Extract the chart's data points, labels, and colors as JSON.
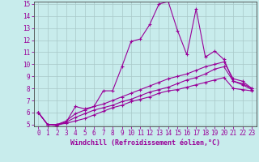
{
  "xlabel": "Windchill (Refroidissement éolien,°C)",
  "bg_color": "#c8ecec",
  "line_color": "#990099",
  "grid_color": "#b0c8c8",
  "ylim": [
    5,
    15
  ],
  "xlim": [
    -0.5,
    23.5
  ],
  "yticks": [
    5,
    6,
    7,
    8,
    9,
    10,
    11,
    12,
    13,
    14,
    15
  ],
  "xticks": [
    0,
    1,
    2,
    3,
    4,
    5,
    6,
    7,
    8,
    9,
    10,
    11,
    12,
    13,
    14,
    15,
    16,
    17,
    18,
    19,
    20,
    21,
    22,
    23
  ],
  "line1_x": [
    0,
    1,
    2,
    3,
    4,
    5,
    6,
    7,
    8,
    9,
    10,
    11,
    12,
    13,
    14,
    15,
    16,
    17,
    18,
    19,
    20,
    21,
    22,
    23
  ],
  "line1_y": [
    6.0,
    5.0,
    4.9,
    5.2,
    6.5,
    6.3,
    6.5,
    7.8,
    7.8,
    9.8,
    11.9,
    12.1,
    13.3,
    15.0,
    15.2,
    12.8,
    10.8,
    14.6,
    10.6,
    11.1,
    10.4,
    8.6,
    8.4,
    8.0
  ],
  "line2_x": [
    0,
    1,
    2,
    3,
    4,
    5,
    6,
    7,
    8,
    9,
    10,
    11,
    12,
    13,
    14,
    15,
    16,
    17,
    18,
    19,
    20,
    21,
    22,
    23
  ],
  "line2_y": [
    6.0,
    5.0,
    5.0,
    5.3,
    5.9,
    6.2,
    6.5,
    6.7,
    7.0,
    7.3,
    7.6,
    7.9,
    8.2,
    8.5,
    8.8,
    9.0,
    9.2,
    9.5,
    9.8,
    10.0,
    10.2,
    8.8,
    8.6,
    8.0
  ],
  "line3_x": [
    0,
    1,
    2,
    3,
    4,
    5,
    6,
    7,
    8,
    9,
    10,
    11,
    12,
    13,
    14,
    15,
    16,
    17,
    18,
    19,
    20,
    21,
    22,
    23
  ],
  "line3_y": [
    6.0,
    5.0,
    5.0,
    5.2,
    5.6,
    5.9,
    6.2,
    6.4,
    6.6,
    6.9,
    7.1,
    7.4,
    7.7,
    7.9,
    8.1,
    8.4,
    8.7,
    8.9,
    9.2,
    9.6,
    9.8,
    8.6,
    8.3,
    7.9
  ],
  "line4_x": [
    0,
    1,
    2,
    3,
    4,
    5,
    6,
    7,
    8,
    9,
    10,
    11,
    12,
    13,
    14,
    15,
    16,
    17,
    18,
    19,
    20,
    21,
    22,
    23
  ],
  "line4_y": [
    6.0,
    5.0,
    5.0,
    5.1,
    5.3,
    5.5,
    5.8,
    6.1,
    6.4,
    6.6,
    6.9,
    7.1,
    7.3,
    7.6,
    7.8,
    7.9,
    8.1,
    8.3,
    8.5,
    8.7,
    8.9,
    8.0,
    7.9,
    7.8
  ],
  "xlabel_fontsize": 6,
  "tick_fontsize": 5.5,
  "marker_size": 3,
  "linewidth": 0.8
}
